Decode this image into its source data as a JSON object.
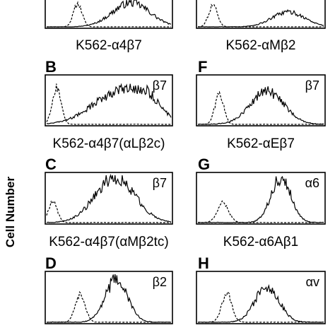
{
  "figure": {
    "ylabel": "Cell Number"
  },
  "chart_data": [
    {
      "type": "area",
      "panel_letter": "",
      "marker": "",
      "cell_line": "K562-α4β7",
      "peaks": {
        "dashed": [
          [
            0.25,
            0.35,
            0.85
          ]
        ],
        "solid": [
          [
            0.68,
            1.5,
            0.9
          ]
        ]
      }
    },
    {
      "type": "area",
      "panel_letter": "",
      "marker": "",
      "cell_line": "K562-αMβ2",
      "peaks": {
        "dashed": [
          [
            0.12,
            0.35,
            0.8
          ]
        ],
        "solid": [
          [
            0.72,
            1.3,
            0.55
          ]
        ]
      }
    },
    {
      "type": "area",
      "panel_letter": "B",
      "marker": "β7",
      "cell_line": "K562-α4β7(αLβ2c)",
      "peaks": {
        "dashed": [
          [
            0.08,
            0.35,
            0.8
          ]
        ],
        "solid": [
          [
            0.6,
            2.2,
            0.72
          ],
          [
            0.82,
            0.9,
            0.25
          ]
        ]
      }
    },
    {
      "type": "area",
      "panel_letter": "F",
      "marker": "β7",
      "cell_line": "K562-αEβ7",
      "peaks": {
        "dashed": [
          [
            0.17,
            0.35,
            0.65
          ]
        ],
        "solid": [
          [
            0.55,
            1.35,
            0.7
          ]
        ]
      }
    },
    {
      "type": "area",
      "panel_letter": "C",
      "marker": "β7",
      "cell_line": "K562-α4β7(αMβ2tc)",
      "peaks": {
        "dashed": [
          [
            0.05,
            0.35,
            0.45
          ]
        ],
        "solid": [
          [
            0.55,
            1.6,
            0.95
          ]
        ]
      }
    },
    {
      "type": "area",
      "panel_letter": "G",
      "marker": "α6",
      "cell_line": "K562-α6Aβ1",
      "peaks": {
        "dashed": [
          [
            0.2,
            0.45,
            0.42
          ]
        ],
        "solid": [
          [
            0.66,
            0.8,
            0.95
          ]
        ]
      }
    },
    {
      "type": "area",
      "panel_letter": "D",
      "marker": "β2",
      "cell_line": "",
      "peaks": {
        "dashed": [
          [
            0.27,
            0.4,
            0.6
          ]
        ],
        "solid": [
          [
            0.56,
            0.9,
            0.88
          ]
        ]
      }
    },
    {
      "type": "area",
      "panel_letter": "H",
      "marker": "αv",
      "cell_line": "",
      "peaks": {
        "dashed": [
          [
            0.23,
            0.4,
            0.6
          ]
        ],
        "solid": [
          [
            0.55,
            0.95,
            0.75
          ]
        ]
      }
    }
  ]
}
